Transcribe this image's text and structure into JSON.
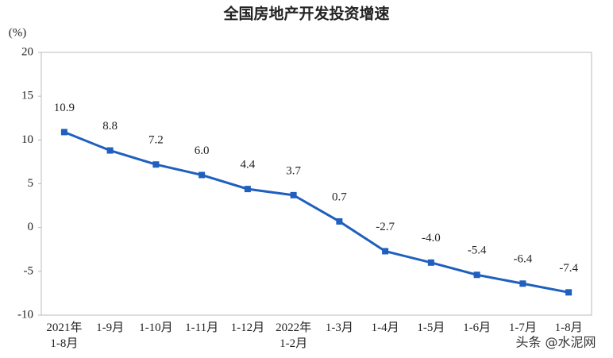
{
  "chart_data": {
    "type": "line",
    "title": "全国房地产开发投资增速",
    "y_unit": "(%)",
    "categories": [
      "2021年\n1-8月",
      "1-9月",
      "1-10月",
      "1-11月",
      "1-12月",
      "2022年\n1-2月",
      "1-3月",
      "1-4月",
      "1-5月",
      "1-6月",
      "1-7月",
      "1-8月"
    ],
    "series": [
      {
        "name": "全国房地产开发投资增速",
        "color": "#1f5fbf",
        "values": [
          10.9,
          8.8,
          7.2,
          6.0,
          4.4,
          3.7,
          0.7,
          -2.7,
          -4.0,
          -5.4,
          -6.4,
          -7.4
        ],
        "value_labels": [
          "10.9",
          "8.8",
          "7.2",
          "6.0",
          "4.4",
          "3.7",
          "0.7",
          "-2.7",
          "-4.0",
          "-5.4",
          "-6.4",
          "-7.4"
        ]
      }
    ],
    "ylim": [
      -10,
      20
    ],
    "yticks": [
      -10,
      -5,
      0,
      5,
      10,
      15,
      20
    ],
    "grid": false,
    "watermark": "头条 @水泥网"
  }
}
